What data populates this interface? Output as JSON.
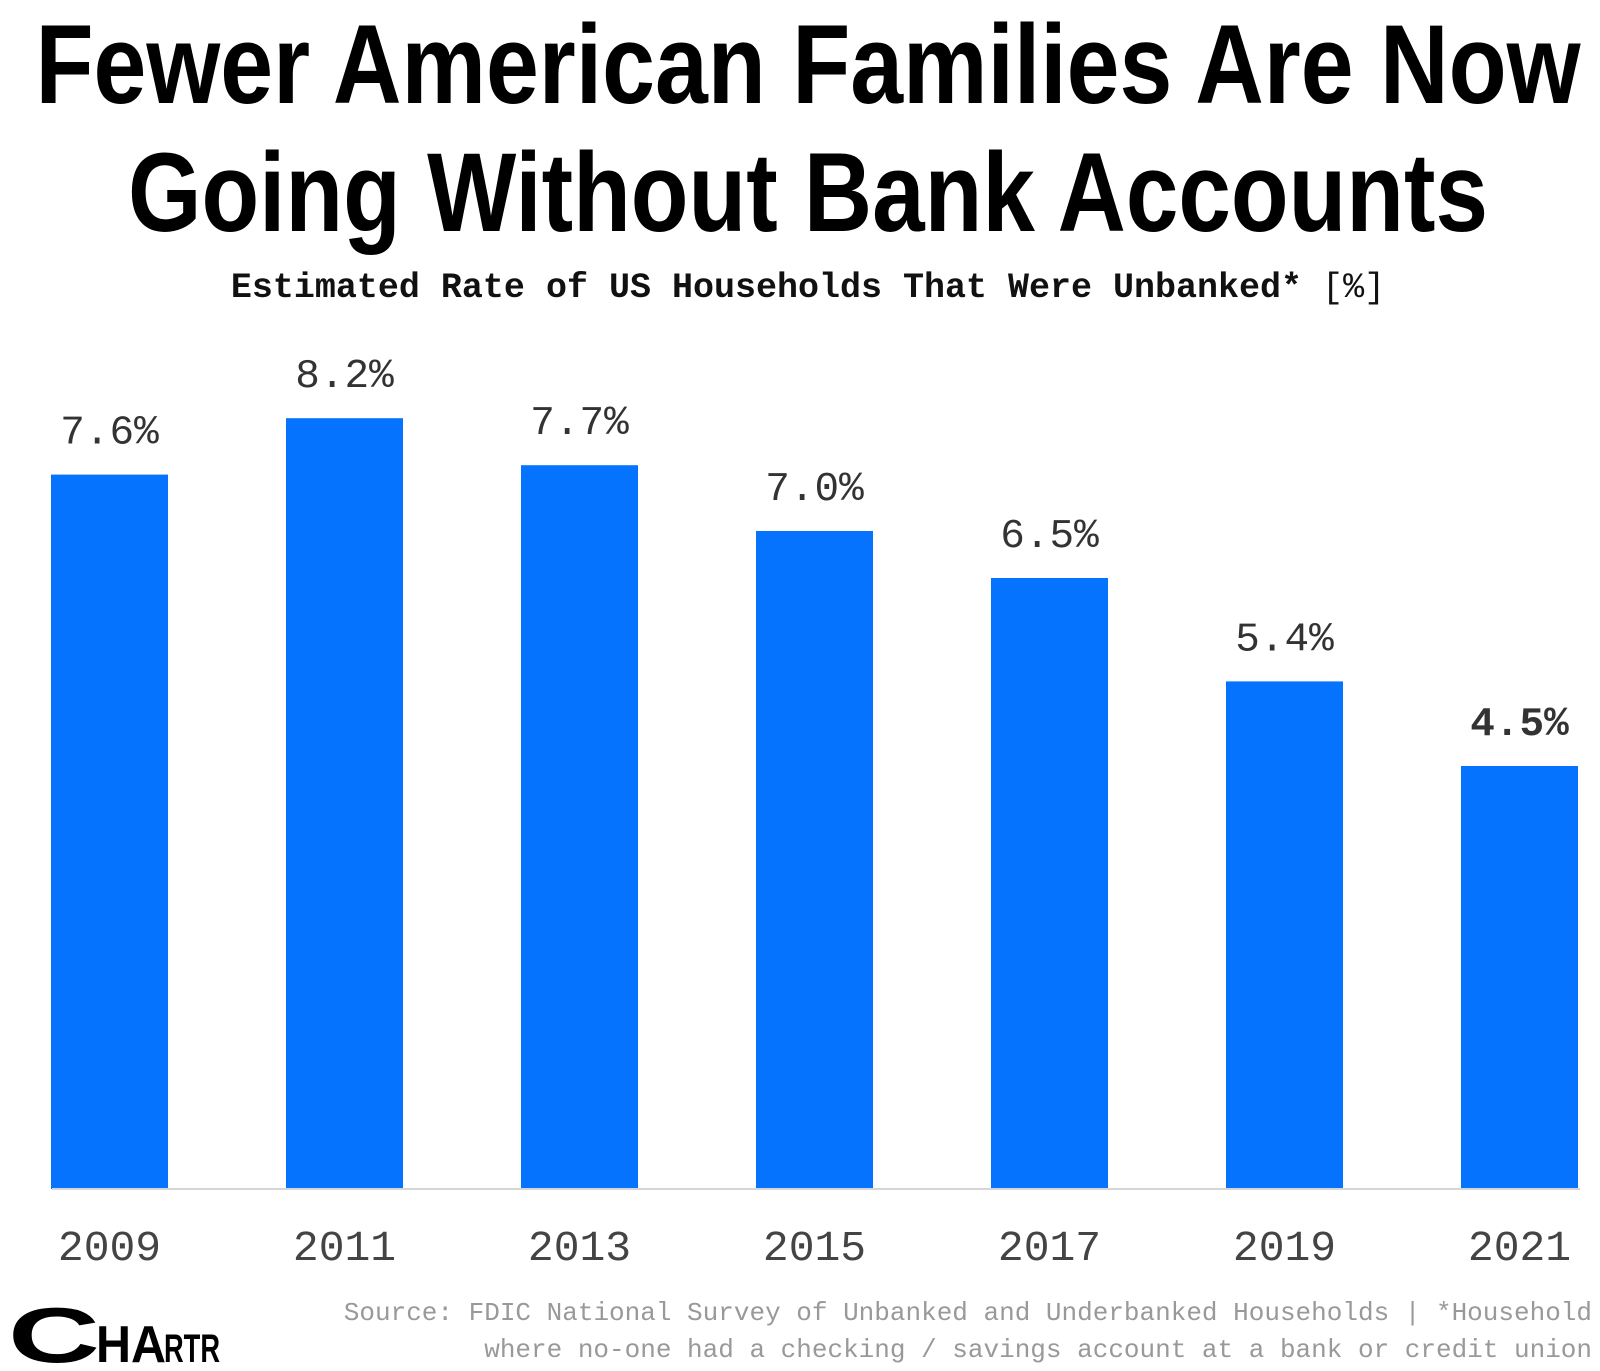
{
  "chart_data": {
    "type": "bar",
    "title_lines": [
      "Fewer American Families Are Now",
      "Going Without Bank Accounts"
    ],
    "subtitle": "Estimated Rate of US Households That Were Unbanked*",
    "unit": "[%]",
    "categories": [
      "2009",
      "2011",
      "2013",
      "2015",
      "2017",
      "2019",
      "2021"
    ],
    "values": [
      7.6,
      8.2,
      7.7,
      7.0,
      6.5,
      5.4,
      4.5
    ],
    "value_labels": [
      "7.6%",
      "8.2%",
      "7.7%",
      "7.0%",
      "6.5%",
      "5.4%",
      "4.5%"
    ],
    "ylim": [
      0,
      8.2
    ],
    "grid": false,
    "bar_color": "#0673ff",
    "highlight_last_label": true
  },
  "footer": {
    "source_line1": "Source: FDIC National Survey of Unbanked and Underbanked Households | *Household",
    "source_line2": "where no-one had a checking / savings account at a bank or credit union",
    "logo": "CHARTR"
  }
}
